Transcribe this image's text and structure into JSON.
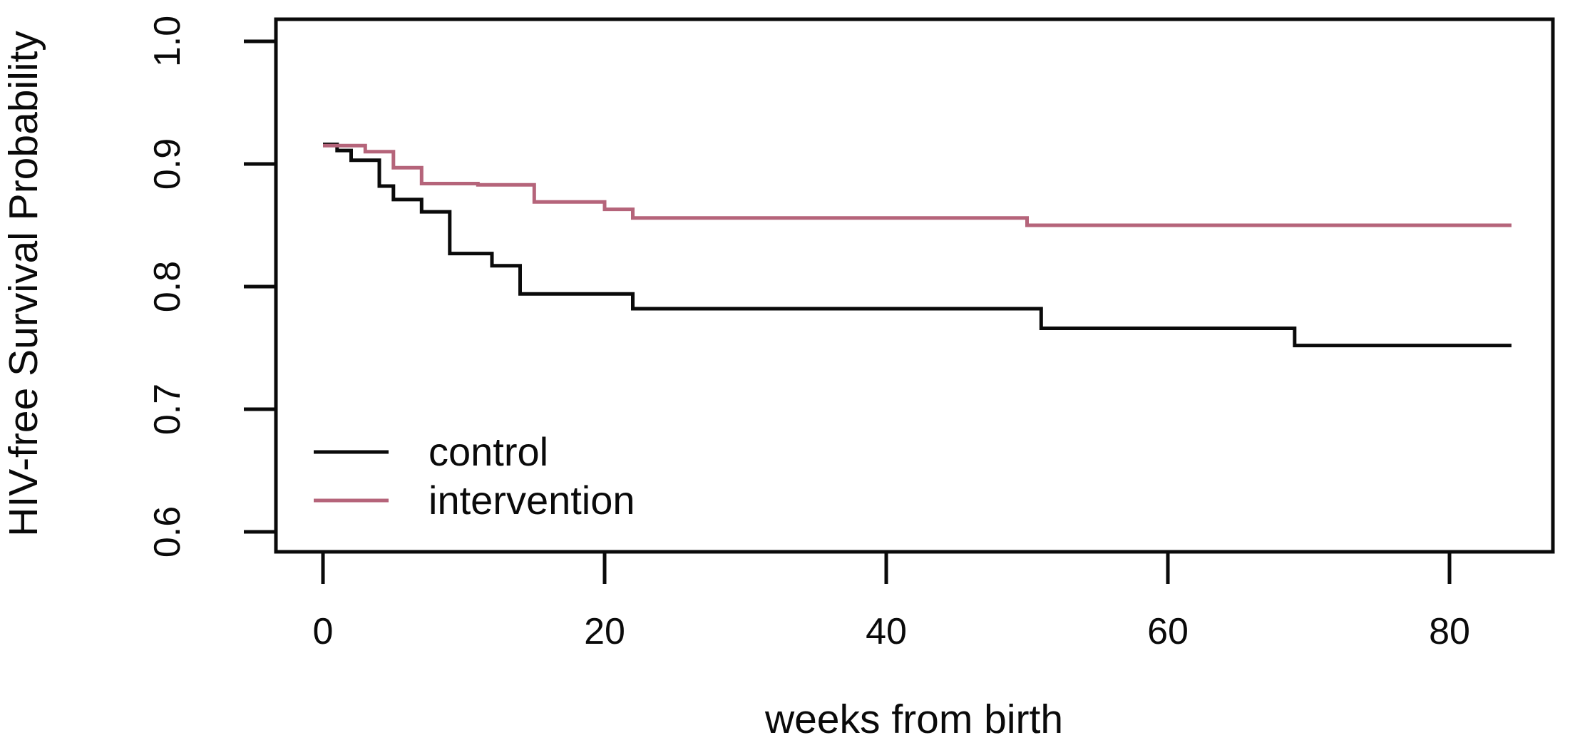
{
  "figure": {
    "background": "#ffffff",
    "axis_color": "#0a0a0a",
    "text_color": "#0a0a0a"
  },
  "chart_data": {
    "type": "line",
    "subtype": "kaplan-meier-step-curve",
    "title": "",
    "xlabel": "weeks from birth",
    "ylabel": "HIV-free Survival Probability",
    "x_ticks": [
      0,
      20,
      40,
      60,
      80
    ],
    "y_ticks": [
      1.0,
      0.9,
      0.8,
      0.7,
      0.6
    ],
    "y_tick_labels": [
      "1.0",
      "0.9",
      "0.8",
      "0.7",
      "0.6"
    ],
    "xlim": [
      -3.3,
      87.3
    ],
    "ylim": [
      0.584,
      1.018
    ],
    "grid": false,
    "end_time": 84.4,
    "legend_position": "inside-lower-left",
    "series": [
      {
        "name": "control",
        "color": "#0a0a0a",
        "points": [
          [
            0,
            0.916
          ],
          [
            1,
            0.911
          ],
          [
            2,
            0.903
          ],
          [
            4,
            0.882
          ],
          [
            5,
            0.871
          ],
          [
            7,
            0.861
          ],
          [
            9,
            0.827
          ],
          [
            12,
            0.817
          ],
          [
            14,
            0.794
          ],
          [
            22,
            0.782
          ],
          [
            51,
            0.766
          ],
          [
            69,
            0.752
          ]
        ]
      },
      {
        "name": "intervention",
        "color": "#b5647a",
        "points": [
          [
            0,
            0.915
          ],
          [
            3,
            0.91
          ],
          [
            5,
            0.897
          ],
          [
            7,
            0.884
          ],
          [
            11,
            0.883
          ],
          [
            15,
            0.869
          ],
          [
            20,
            0.863
          ],
          [
            22,
            0.856
          ],
          [
            50,
            0.85
          ]
        ]
      }
    ]
  }
}
